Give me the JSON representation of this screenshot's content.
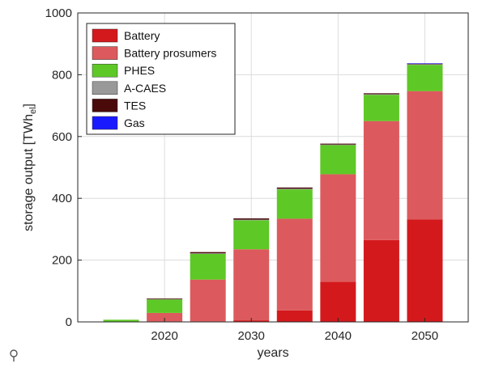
{
  "chart_data": {
    "type": "bar",
    "stacked": true,
    "xlabel": "years",
    "ylabel": "storage output [TWh",
    "ylabel_sub": "el",
    "ylabel_close": "]",
    "ylim": [
      0,
      1000
    ],
    "yticks": [
      "0",
      "200",
      "400",
      "600",
      "800",
      "1000"
    ],
    "xticks": [
      "2020",
      "2030",
      "2040",
      "2050"
    ],
    "grid": true,
    "legend_position": "top-left",
    "categories": [
      "2015",
      "2020",
      "2025",
      "2030",
      "2035",
      "2040",
      "2045",
      "2050"
    ],
    "series": [
      {
        "name": "Battery",
        "color": "#d4191c",
        "values": [
          0,
          2,
          2,
          5,
          37,
          130,
          265,
          332
        ]
      },
      {
        "name": "Battery prosumers",
        "color": "#dc5a5d",
        "values": [
          0,
          27,
          135,
          230,
          297,
          348,
          385,
          415
        ]
      },
      {
        "name": "PHES",
        "color": "#5ec826",
        "values": [
          7,
          44,
          83,
          94,
          95,
          94,
          85,
          85
        ]
      },
      {
        "name": "A-CAES",
        "color": "#999999",
        "values": [
          0,
          1,
          2,
          2,
          2,
          2,
          2,
          2
        ]
      },
      {
        "name": "TES",
        "color": "#4a0a0a",
        "values": [
          0,
          2,
          4,
          4,
          4,
          3,
          3,
          2
        ]
      },
      {
        "name": "Gas",
        "color": "#1a1aff",
        "values": [
          0,
          0,
          0,
          0,
          0,
          0,
          0,
          1
        ]
      }
    ]
  },
  "icons": {
    "footer": "map-pin-icon"
  }
}
